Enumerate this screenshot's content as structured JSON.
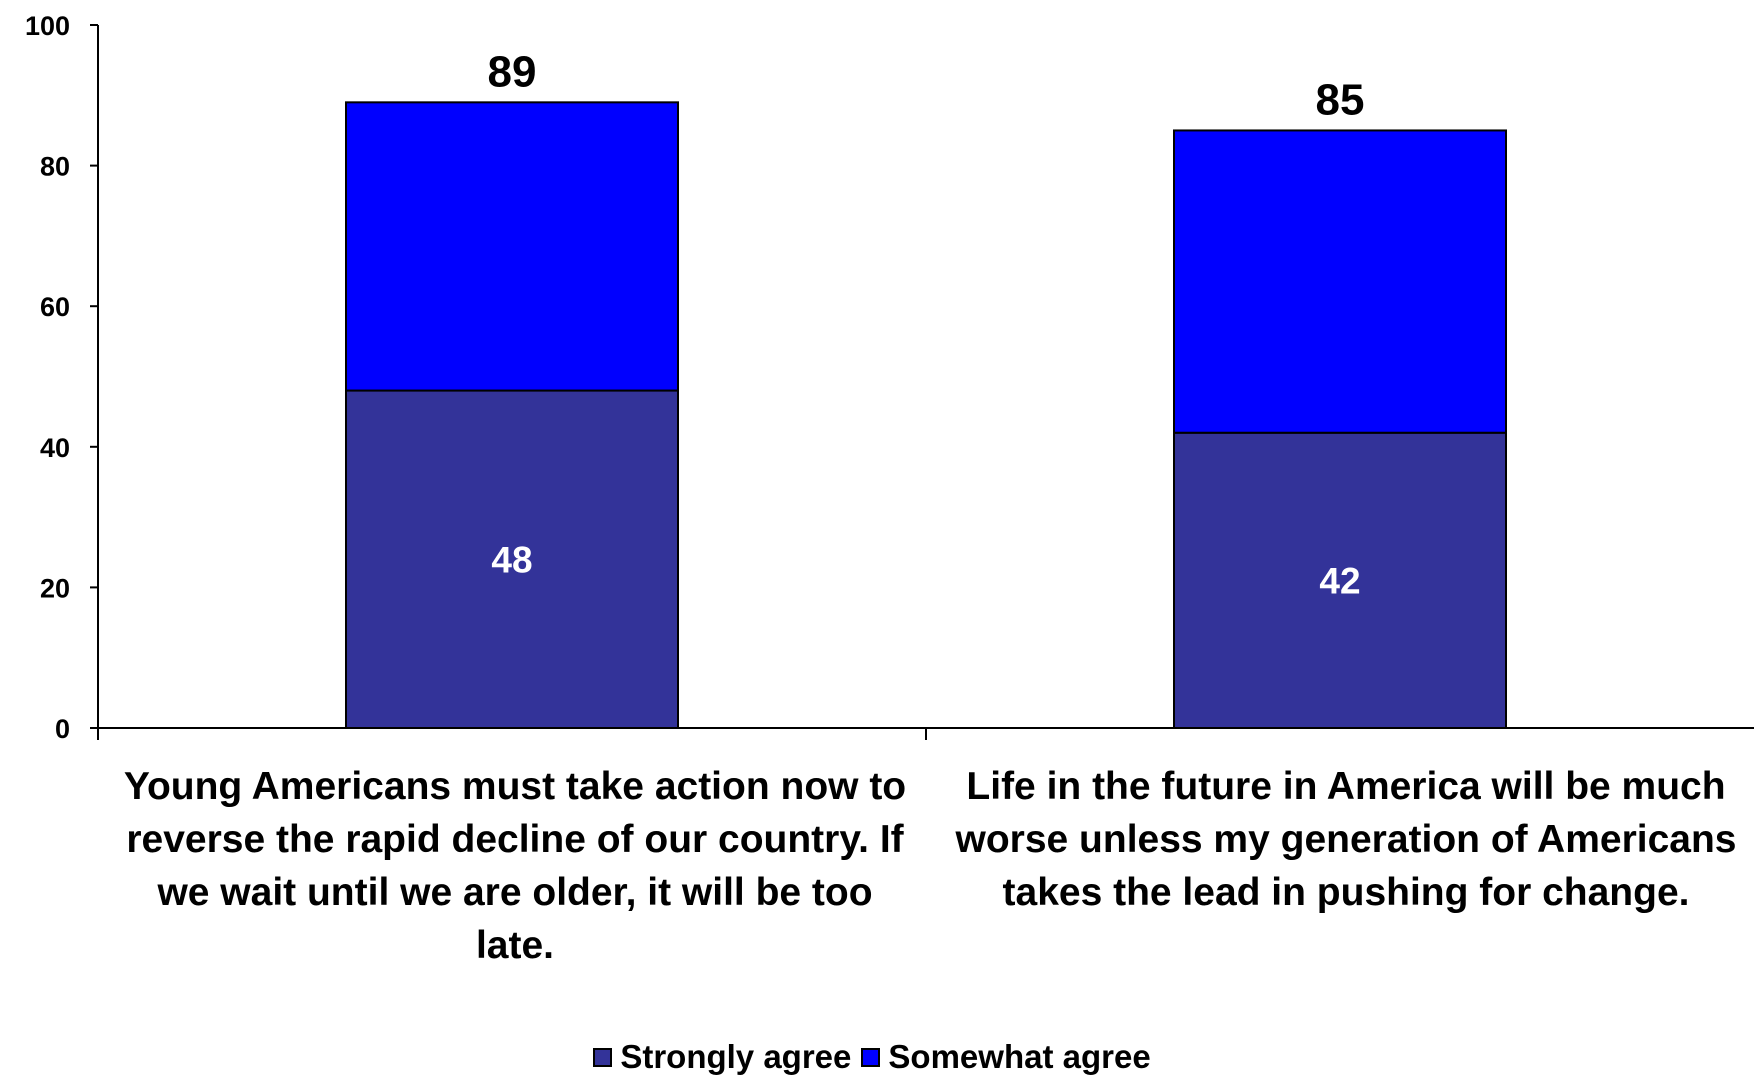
{
  "chart_data": {
    "type": "bar",
    "stacked": true,
    "categories": [
      "Young Americans must take action now to reverse the rapid decline of our country. If we wait until we are older, it will be too late.",
      "Life in the future in America will be much worse unless my generation of Americans takes the lead in pushing for change."
    ],
    "series": [
      {
        "name": "Strongly agree",
        "values": [
          48,
          42
        ],
        "color": "#333399"
      },
      {
        "name": "Somewhat agree",
        "values": [
          41,
          43
        ],
        "color": "#0000FF"
      }
    ],
    "totals": [
      89,
      85
    ],
    "inner_labels": [
      48,
      42
    ],
    "y_ticks": [
      0,
      20,
      40,
      60,
      80,
      100
    ],
    "ylim": [
      0,
      100
    ],
    "grid": false,
    "legend_position": "bottom",
    "title": "",
    "xlabel": "",
    "ylabel": ""
  }
}
